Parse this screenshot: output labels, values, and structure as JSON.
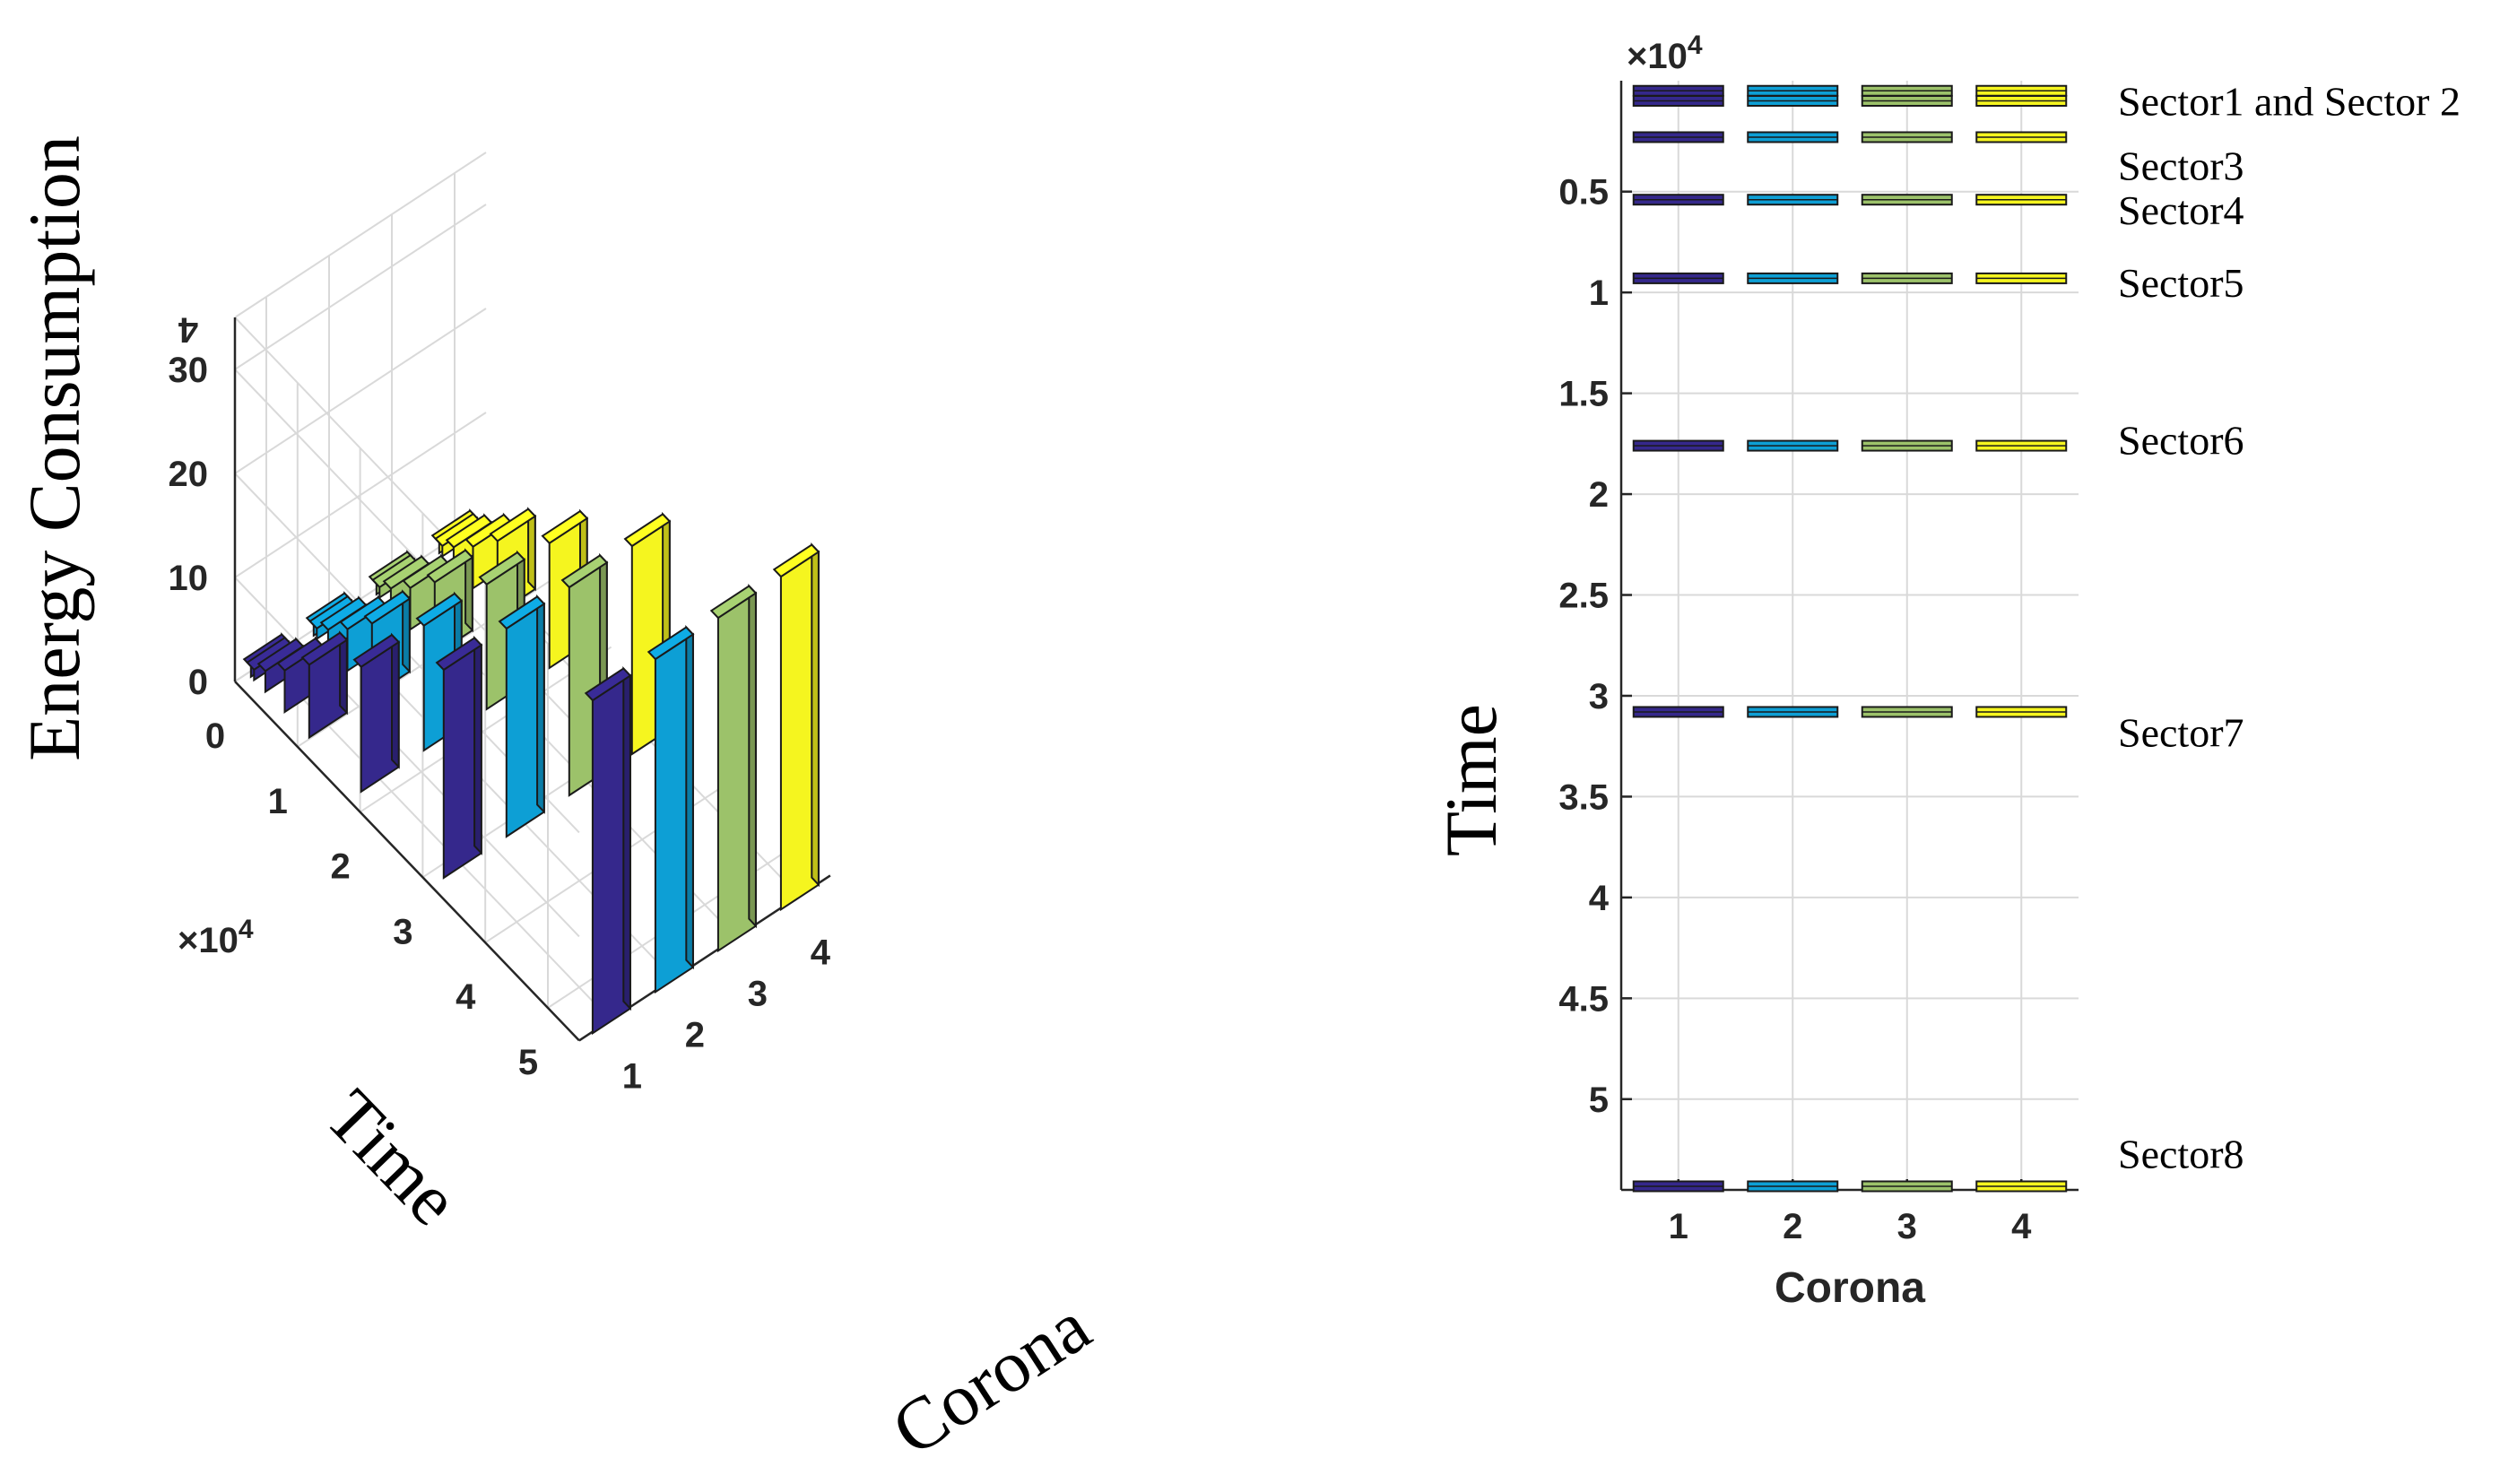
{
  "colors": {
    "corona1": "#35288c",
    "corona2": "#0d9fd5",
    "corona3": "#9cc26a",
    "corona4": "#f5f51f",
    "edge": "#1a1a1a",
    "grid": "#d9d9d9",
    "axis": "#262626"
  },
  "chart_data": [
    {
      "type": "bar3d",
      "title": "",
      "xlabel": "Corona",
      "ylabel": "Time",
      "zlabel": "Energy Consumption",
      "y_exponent_label": "×10",
      "y_exponent_power": "4",
      "x_ticks": [
        "1",
        "2",
        "3",
        "4"
      ],
      "y_ticks": [
        "0",
        "1",
        "2",
        "3",
        "4",
        "5"
      ],
      "z_ticks": [
        "0",
        "10",
        "20",
        "30"
      ],
      "z_top_partial_tick": "4",
      "zlim": [
        0,
        35
      ],
      "ylim": [
        0,
        55000
      ],
      "categories": [
        "1",
        "2",
        "3",
        "4"
      ],
      "series": [
        {
          "name": "Sector1",
          "time": 0,
          "values": [
            1,
            1,
            1,
            1
          ]
        },
        {
          "name": "Sector2",
          "time": 500,
          "values": [
            1,
            1,
            1,
            1
          ]
        },
        {
          "name": "Sector3",
          "time": 2300,
          "values": [
            2,
            2,
            2,
            2
          ]
        },
        {
          "name": "Sector4",
          "time": 5400,
          "values": [
            4,
            4,
            4,
            4
          ]
        },
        {
          "name": "Sector5",
          "time": 9300,
          "values": [
            7,
            7,
            7,
            7
          ]
        },
        {
          "name": "Sector6",
          "time": 17600,
          "values": [
            12,
            12,
            12,
            12
          ]
        },
        {
          "name": "Sector7",
          "time": 30800,
          "values": [
            20,
            20,
            20,
            20
          ]
        },
        {
          "name": "Sector8",
          "time": 54600,
          "values": [
            32,
            32,
            32,
            32
          ]
        }
      ]
    },
    {
      "type": "bar_top_view",
      "title": "",
      "xlabel": "Corona",
      "ylabel": "Time",
      "y_exponent_label": "×10",
      "y_exponent_power": "4",
      "x_ticks": [
        "1",
        "2",
        "3",
        "4"
      ],
      "y_ticks": [
        "0.5",
        "1",
        "1.5",
        "2",
        "2.5",
        "3",
        "3.5",
        "4",
        "4.5",
        "5"
      ],
      "y_tick_values": [
        0.5,
        1,
        1.5,
        2,
        2.5,
        3,
        3.5,
        4,
        4.5,
        5
      ],
      "ylim": [
        -0.05,
        5.45
      ],
      "y_direction": "reverse",
      "rows": [
        {
          "label": "",
          "time": 0
        },
        {
          "label": "",
          "time": 0.05
        },
        {
          "label": "",
          "time": 0.23
        },
        {
          "label": "",
          "time": 0.54
        },
        {
          "label": "",
          "time": 0.93
        },
        {
          "label": "",
          "time": 1.76
        },
        {
          "label": "",
          "time": 3.08
        },
        {
          "label": "",
          "time": 5.46
        }
      ],
      "annotations": [
        {
          "text": "Sector1 and Sector 2",
          "time": 0.05
        },
        {
          "text": "Sector3",
          "time": 0.37
        },
        {
          "text": "Sector4",
          "time": 0.59
        },
        {
          "text": "Sector5",
          "time": 0.95
        },
        {
          "text": "Sector6",
          "time": 1.73
        },
        {
          "text": "Sector7",
          "time": 3.18
        },
        {
          "text": "Sector8",
          "time": 5.27
        }
      ]
    }
  ]
}
